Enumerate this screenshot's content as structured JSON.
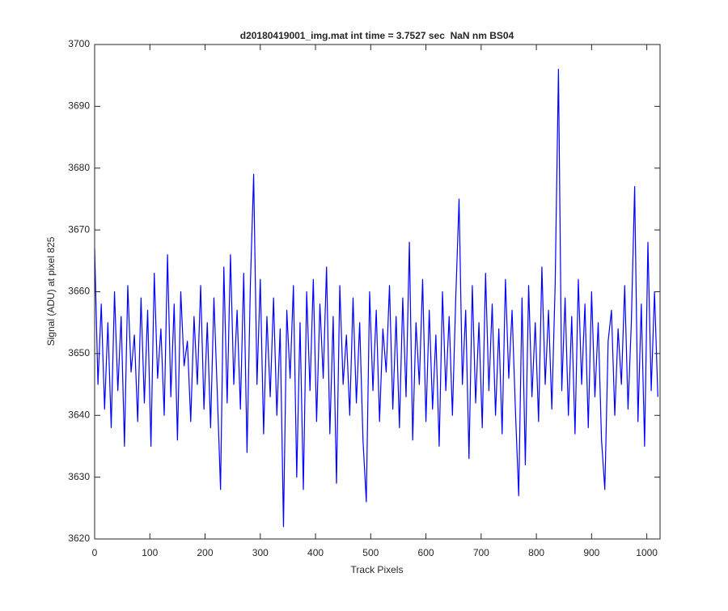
{
  "chart_data": {
    "type": "line",
    "title": "d20180419001_img.mat int time = 3.7527 sec  NaN nm BS04",
    "x_label": "Track Pixels",
    "y_label": "Signal (ADU) at pixel 825",
    "xlim": [
      0,
      1024
    ],
    "ylim": [
      3620,
      3700
    ],
    "xticks": [
      0,
      100,
      200,
      300,
      400,
      500,
      600,
      700,
      800,
      900,
      1000
    ],
    "yticks": [
      3620,
      3630,
      3640,
      3650,
      3660,
      3670,
      3680,
      3690,
      3700
    ],
    "grid": false,
    "series": [
      {
        "color": "#0000ff",
        "x": [
          0,
          6,
          12,
          18,
          24,
          30,
          36,
          42,
          48,
          54,
          60,
          66,
          72,
          78,
          84,
          90,
          96,
          102,
          108,
          114,
          120,
          126,
          132,
          138,
          144,
          150,
          156,
          162,
          168,
          174,
          180,
          186,
          192,
          198,
          204,
          210,
          216,
          222,
          228,
          234,
          240,
          246,
          252,
          258,
          264,
          270,
          276,
          282,
          288,
          294,
          300,
          306,
          312,
          318,
          324,
          330,
          336,
          342,
          348,
          354,
          360,
          366,
          372,
          378,
          384,
          390,
          396,
          402,
          408,
          414,
          420,
          426,
          432,
          438,
          444,
          450,
          456,
          462,
          468,
          474,
          480,
          486,
          492,
          498,
          504,
          510,
          516,
          522,
          528,
          534,
          540,
          546,
          552,
          558,
          564,
          570,
          576,
          582,
          588,
          594,
          600,
          606,
          612,
          618,
          624,
          630,
          636,
          642,
          648,
          654,
          660,
          666,
          672,
          678,
          684,
          690,
          696,
          702,
          708,
          714,
          720,
          726,
          732,
          738,
          744,
          750,
          756,
          762,
          768,
          774,
          780,
          786,
          792,
          798,
          804,
          810,
          816,
          822,
          828,
          834,
          840,
          846,
          852,
          858,
          864,
          870,
          876,
          882,
          888,
          894,
          900,
          906,
          912,
          918,
          924,
          930,
          936,
          942,
          948,
          954,
          960,
          966,
          972,
          978,
          984,
          990,
          996,
          1002,
          1008,
          1014,
          1020
        ],
        "values": [
          3667,
          3645,
          3658,
          3641,
          3655,
          3638,
          3660,
          3644,
          3656,
          3635,
          3661,
          3647,
          3653,
          3639,
          3659,
          3642,
          3657,
          3635,
          3663,
          3646,
          3654,
          3640,
          3666,
          3643,
          3658,
          3636,
          3660,
          3648,
          3652,
          3639,
          3656,
          3645,
          3661,
          3641,
          3655,
          3638,
          3659,
          3644,
          3628,
          3664,
          3642,
          3666,
          3645,
          3657,
          3641,
          3663,
          3634,
          3661,
          3679,
          3645,
          3662,
          3637,
          3656,
          3643,
          3659,
          3640,
          3654,
          3622,
          3657,
          3646,
          3661,
          3630,
          3655,
          3628,
          3660,
          3644,
          3662,
          3639,
          3658,
          3646,
          3664,
          3637,
          3656,
          3629,
          3661,
          3645,
          3653,
          3640,
          3659,
          3642,
          3655,
          3636,
          3626,
          3660,
          3644,
          3657,
          3639,
          3654,
          3647,
          3661,
          3641,
          3656,
          3638,
          3659,
          3643,
          3668,
          3636,
          3655,
          3645,
          3662,
          3639,
          3657,
          3641,
          3653,
          3635,
          3660,
          3644,
          3656,
          3640,
          3659,
          3675,
          3645,
          3657,
          3633,
          3661,
          3642,
          3655,
          3638,
          3663,
          3644,
          3658,
          3640,
          3654,
          3637,
          3662,
          3646,
          3657,
          3641,
          3627,
          3659,
          3632,
          3661,
          3643,
          3655,
          3639,
          3664,
          3645,
          3657,
          3641,
          3661,
          3696,
          3644,
          3659,
          3640,
          3656,
          3637,
          3662,
          3645,
          3658,
          3638,
          3660,
          3643,
          3655,
          3636,
          3628,
          3652,
          3657,
          3640,
          3654,
          3645,
          3661,
          3641,
          3655,
          3677,
          3639,
          3658,
          3635,
          3668,
          3644,
          3660,
          3643
        ]
      }
    ]
  }
}
